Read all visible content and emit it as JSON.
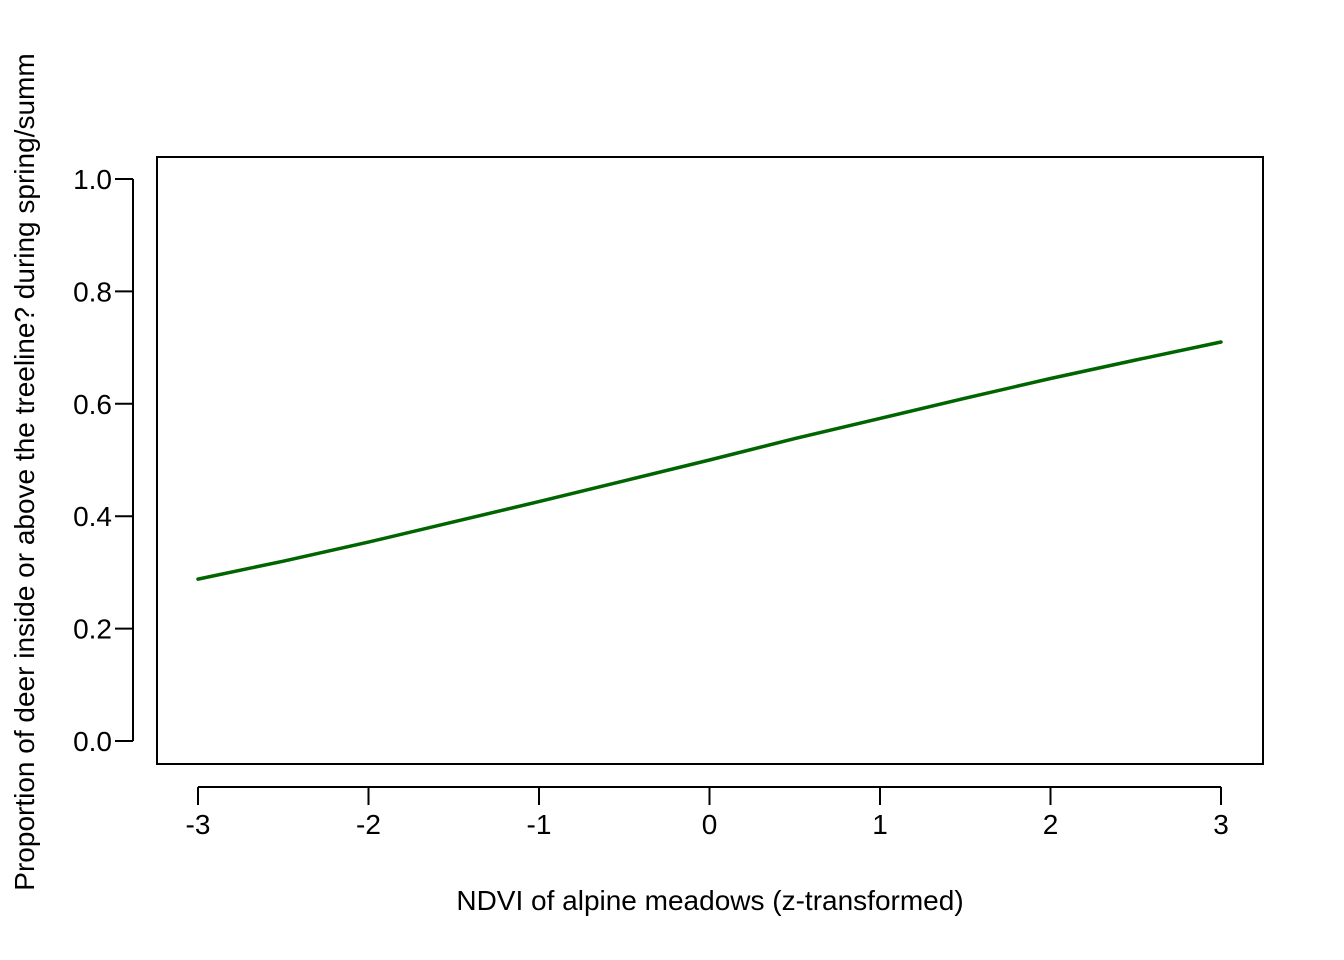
{
  "chart_data": {
    "type": "line",
    "title": "",
    "xlabel": "NDVI of alpine meadows (z-transformed)",
    "ylabel": "Proportion of deer inside or above the treeline? during spring/summ",
    "xlim": [
      -3,
      3
    ],
    "ylim": [
      0,
      1
    ],
    "x_ticks": [
      -3,
      -2,
      -1,
      0,
      1,
      2,
      3
    ],
    "x_tick_labels": [
      "-3",
      "-2",
      "-1",
      "0",
      "1",
      "2",
      "3"
    ],
    "y_ticks": [
      0.0,
      0.2,
      0.4,
      0.6,
      0.8,
      1.0
    ],
    "y_tick_labels": [
      "0.0",
      "0.2",
      "0.4",
      "0.6",
      "0.8",
      "1.0"
    ],
    "grid": false,
    "legend": "none",
    "series": [
      {
        "color": "#006400",
        "x": [
          -3,
          -2.5,
          -2,
          -1.5,
          -1,
          -0.5,
          0,
          0.5,
          1,
          1.5,
          2,
          2.5,
          3
        ],
        "y": [
          0.288,
          0.32,
          0.354,
          0.39,
          0.426,
          0.463,
          0.5,
          0.538,
          0.574,
          0.61,
          0.645,
          0.678,
          0.71
        ]
      }
    ]
  }
}
